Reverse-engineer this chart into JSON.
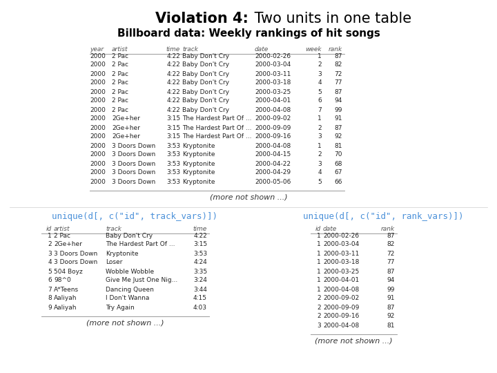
{
  "title_bold": "Violation 4:",
  "title_normal": " Two units in one table",
  "subtitle": "Billboard data: Weekly rankings of hit songs",
  "main_table": {
    "columns": [
      "year",
      "artist",
      "time",
      "track",
      "date",
      "week",
      "rank"
    ],
    "rows": [
      [
        "2000",
        "2 Pac",
        "4:22",
        "Baby Don't Cry",
        "2000-02-26",
        "1",
        "87"
      ],
      [
        "2000",
        "2 Pac",
        "4:22",
        "Baby Don't Cry",
        "2000-03-04",
        "2",
        "82"
      ],
      [
        "2000",
        "2 Pac",
        "4:22",
        "Baby Don't Cry",
        "2000-03-11",
        "3",
        "72"
      ],
      [
        "2000",
        "2 Pac",
        "4:22",
        "Baby Don't Cry",
        "2000-03-18",
        "4",
        "77"
      ],
      [
        "2000",
        "2 Pac",
        "4:22",
        "Baby Don't Cry",
        "2000-03-25",
        "5",
        "87"
      ],
      [
        "2000",
        "2 Pac",
        "4:22",
        "Baby Don't Cry",
        "2000-04-01",
        "6",
        "94"
      ],
      [
        "2000",
        "2 Pac",
        "4:22",
        "Baby Don't Cry",
        "2000-04-08",
        "7",
        "99"
      ],
      [
        "2000",
        "2Ge+her",
        "3:15",
        "The Hardest Part Of ...",
        "2000-09-02",
        "1",
        "91"
      ],
      [
        "2000",
        "2Ge+her",
        "3:15",
        "The Hardest Part Of ...",
        "2000-09-09",
        "2",
        "87"
      ],
      [
        "2000",
        "2Ge+her",
        "3:15",
        "The Hardest Part Of ...",
        "2000-09-16",
        "3",
        "92"
      ],
      [
        "2000",
        "3 Doors Down",
        "3:53",
        "Kryptonite",
        "2000-04-08",
        "1",
        "81"
      ],
      [
        "2000",
        "3 Doors Down",
        "3:53",
        "Kryptonite",
        "2000-04-15",
        "2",
        "70"
      ],
      [
        "2000",
        "3 Doors Down",
        "3:53",
        "Kryptonite",
        "2000-04-22",
        "3",
        "68"
      ],
      [
        "2000",
        "3 Doors Down",
        "3:53",
        "Kryptonite",
        "2000-04-29",
        "4",
        "67"
      ],
      [
        "2000",
        "3 Doors Down",
        "3:53",
        "Kryptonite",
        "2000-05-06",
        "5",
        "66"
      ]
    ],
    "more_text": "(more not shown ...)"
  },
  "left_table": {
    "label": "unique(d[, c(\"id\", track_vars)])",
    "columns": [
      "id",
      "artist",
      "track",
      "time"
    ],
    "rows": [
      [
        "1",
        "2 Pac",
        "Baby Don't Cry",
        "4:22"
      ],
      [
        "2",
        "2Ge+her",
        "The Hardest Part Of ...",
        "3:15"
      ],
      [
        "3",
        "3 Doors Down",
        "Kryptonite",
        "3:53"
      ],
      [
        "4",
        "3 Doors Down",
        "Loser",
        "4:24"
      ],
      [
        "5",
        "504 Boyz",
        "Wobble Wobble",
        "3:35"
      ],
      [
        "6",
        "98^0",
        "Give Me Just One Nig...",
        "3:24"
      ],
      [
        "7",
        "A*Teens",
        "Dancing Queen",
        "3:44"
      ],
      [
        "8",
        "Aaliyah",
        "I Don't Wanna",
        "4:15"
      ],
      [
        "9",
        "Aaliyah",
        "Try Again",
        "4:03"
      ]
    ],
    "more_text": "(more not shown ...)"
  },
  "right_table": {
    "label": "unique(d[, c(\"id\", rank_vars)])",
    "columns": [
      "id",
      "date",
      "rank"
    ],
    "rows": [
      [
        "1",
        "2000-02-26",
        "87"
      ],
      [
        "1",
        "2000-03-04",
        "82"
      ],
      [
        "1",
        "2000-03-11",
        "72"
      ],
      [
        "1",
        "2000-03-18",
        "77"
      ],
      [
        "1",
        "2000-03-25",
        "87"
      ],
      [
        "1",
        "2000-04-01",
        "94"
      ],
      [
        "1",
        "2000-04-08",
        "99"
      ],
      [
        "2",
        "2000-09-02",
        "91"
      ],
      [
        "2",
        "2000-09-09",
        "87"
      ],
      [
        "2",
        "2000-09-16",
        "92"
      ],
      [
        "3",
        "2000-04-08",
        "81"
      ]
    ],
    "more_text": "(more not shown ...)"
  },
  "label_color": "#4a90d9",
  "header_color": "#555555",
  "row_color": "#222222",
  "bg_color": "#ffffff",
  "alt_row_color": "#f5f5f5"
}
